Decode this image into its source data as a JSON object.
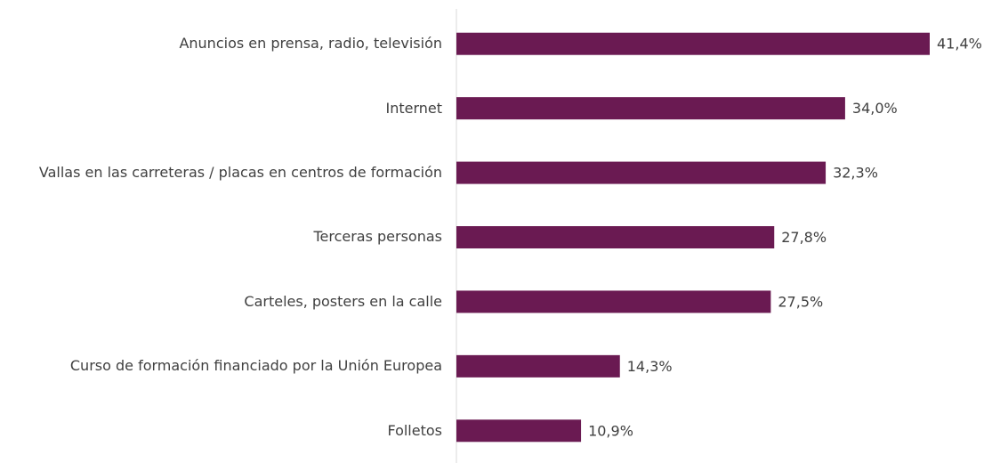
{
  "chart_data": {
    "type": "hbar",
    "categories": [
      "Anuncios en prensa, radio, televisión",
      "Internet",
      "Vallas en las carreteras / placas en centros de formación",
      "Terceras personas",
      "Carteles, posters en la calle",
      "Curso de formación financiado por la Unión Europea",
      "Folletos"
    ],
    "values": [
      41.4,
      34.0,
      32.3,
      27.8,
      27.5,
      14.3,
      10.9
    ],
    "value_labels": [
      "41,4%",
      "34,0%",
      "32,3%",
      "27,8%",
      "27,5%",
      "14,3%",
      "10,9%"
    ],
    "color": "#6a1a52"
  }
}
